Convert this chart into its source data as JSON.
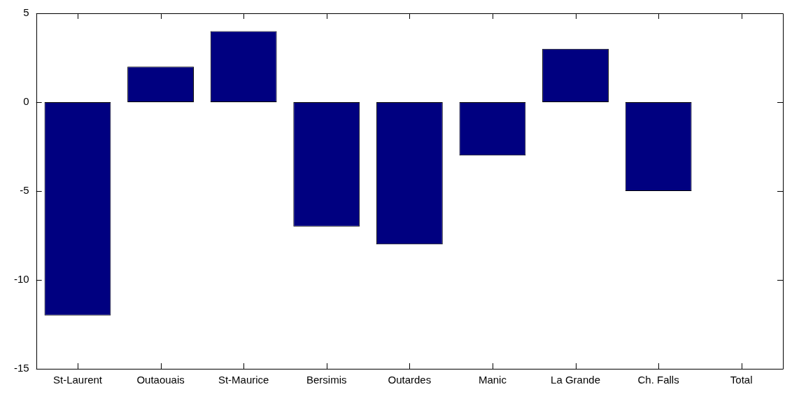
{
  "chart_data": {
    "type": "bar",
    "categories": [
      "St-Laurent",
      "Outaouais",
      "St-Maurice",
      "Bersimis",
      "Outardes",
      "Manic",
      "La Grande",
      "Ch. Falls",
      "Total"
    ],
    "values": [
      -12,
      2,
      4,
      -7,
      -8,
      -3,
      3,
      -5,
      0
    ],
    "color": "#000080",
    "ylim": [
      -15,
      5
    ],
    "yticks": [
      -15,
      -10,
      -5,
      0,
      5
    ]
  }
}
